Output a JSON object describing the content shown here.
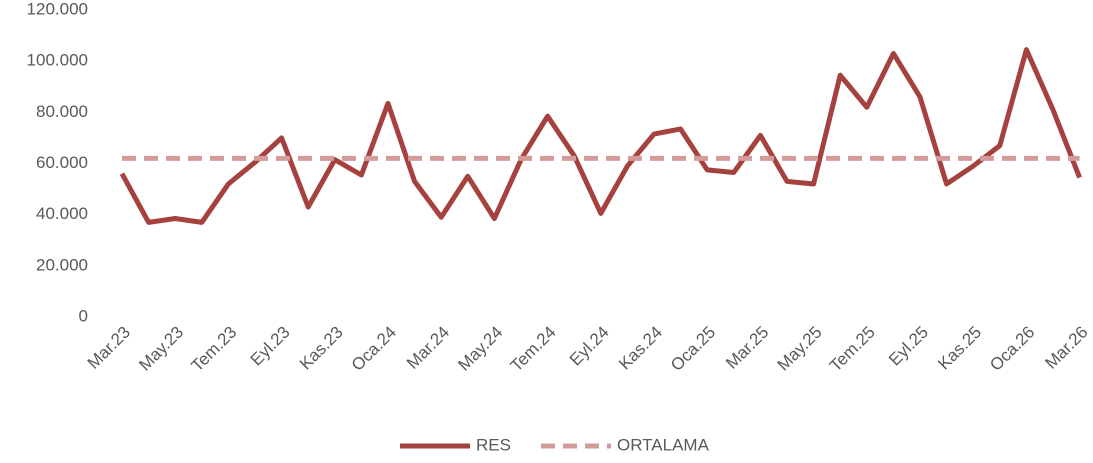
{
  "chart_data": {
    "type": "line",
    "categories": [
      "Mar.23",
      null,
      "May.23",
      null,
      "Tem.23",
      null,
      "Eyl.23",
      null,
      "Kas.23",
      null,
      "Oca.24",
      null,
      "Mar.24",
      null,
      "May.24",
      null,
      "Tem.24",
      null,
      "Eyl.24",
      null,
      "Kas.24",
      null,
      "Oca.25",
      null,
      "Mar.25",
      null,
      "May.25",
      null,
      "Tem.25",
      null,
      "Eyl.25",
      null,
      "Kas.25",
      null,
      "Oca.26",
      null,
      "Mar.26"
    ],
    "series": [
      {
        "name": "RES",
        "color": "#a5423f",
        "dashed": false,
        "values": [
          56000,
          37000,
          38500,
          37000,
          52000,
          60500,
          70000,
          43000,
          61500,
          55500,
          83500,
          53000,
          39000,
          55000,
          38500,
          61500,
          78500,
          63000,
          40500,
          59000,
          71500,
          73500,
          57500,
          56500,
          71000,
          53000,
          52000,
          94500,
          82000,
          103000,
          86000,
          52000,
          59000,
          67000,
          104500,
          81000,
          54500
        ]
      },
      {
        "name": "ORTALAMA",
        "color": "#d49b9b",
        "dashed": true,
        "values": [
          62000,
          62000,
          62000,
          62000,
          62000,
          62000,
          62000,
          62000,
          62000,
          62000,
          62000,
          62000,
          62000,
          62000,
          62000,
          62000,
          62000,
          62000,
          62000,
          62000,
          62000,
          62000,
          62000,
          62000,
          62000,
          62000,
          62000,
          62000,
          62000,
          62000,
          62000,
          62000,
          62000,
          62000,
          62000,
          62000,
          62000
        ]
      }
    ],
    "ylim": [
      0,
      120000
    ],
    "yticks": [
      0,
      {
        "value": 20000,
        "label": "20.000"
      },
      {
        "value": 40000,
        "label": "40.000"
      },
      {
        "value": 60000,
        "label": "60.000"
      },
      {
        "value": 80000,
        "label": "80.000"
      },
      {
        "value": 100000,
        "label": "100.000"
      },
      {
        "value": 120000,
        "label": "120.000"
      }
    ],
    "grid": false,
    "legend": "bottom"
  }
}
